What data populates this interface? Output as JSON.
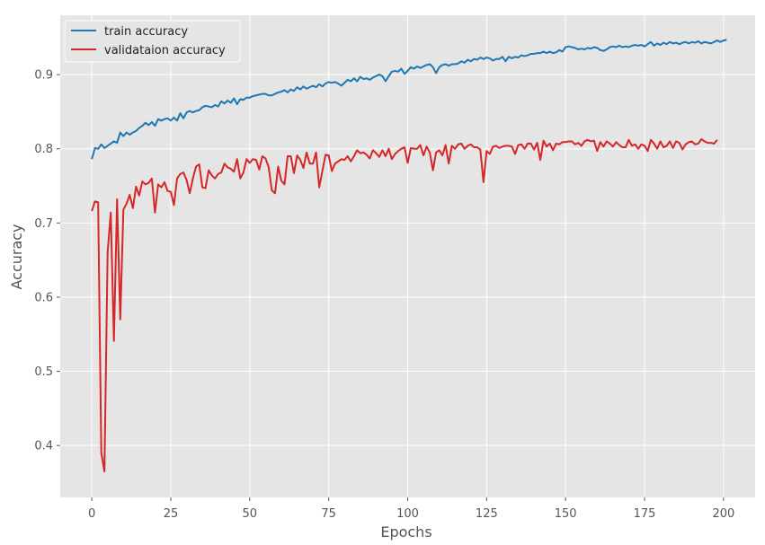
{
  "chart_data": {
    "type": "line",
    "title": "",
    "xlabel": "Epochs",
    "ylabel": "Accuracy",
    "xlim": [
      -10,
      210
    ],
    "ylim": [
      0.33,
      0.98
    ],
    "x_ticks": [
      0,
      25,
      50,
      75,
      100,
      125,
      150,
      175,
      200
    ],
    "x_tick_labels": [
      "0",
      "25",
      "50",
      "75",
      "100",
      "125",
      "150",
      "175",
      "200"
    ],
    "y_ticks": [
      0.4,
      0.5,
      0.6,
      0.7,
      0.8,
      0.9
    ],
    "y_tick_labels": [
      "0.4",
      "0.5",
      "0.6",
      "0.7",
      "0.8",
      "0.9"
    ],
    "grid": true,
    "legend_position": "top-left",
    "style": {
      "background": "#e5e5e5",
      "grid_color": "#ffffff",
      "tick_color": "#555555"
    },
    "x_start": 0,
    "x_step": 1,
    "series": [
      {
        "name": "train accuracy",
        "color": "#1f77b4",
        "values": [
          0.786,
          0.801,
          0.8,
          0.806,
          0.801,
          0.804,
          0.807,
          0.81,
          0.808,
          0.822,
          0.817,
          0.822,
          0.819,
          0.822,
          0.824,
          0.828,
          0.831,
          0.835,
          0.832,
          0.836,
          0.831,
          0.84,
          0.838,
          0.84,
          0.841,
          0.838,
          0.842,
          0.838,
          0.848,
          0.841,
          0.849,
          0.851,
          0.849,
          0.851,
          0.852,
          0.856,
          0.858,
          0.857,
          0.856,
          0.859,
          0.857,
          0.864,
          0.861,
          0.865,
          0.862,
          0.868,
          0.86,
          0.867,
          0.866,
          0.869,
          0.869,
          0.871,
          0.872,
          0.873,
          0.874,
          0.874,
          0.872,
          0.872,
          0.874,
          0.876,
          0.877,
          0.879,
          0.876,
          0.88,
          0.878,
          0.883,
          0.88,
          0.884,
          0.881,
          0.883,
          0.885,
          0.883,
          0.887,
          0.884,
          0.888,
          0.89,
          0.889,
          0.89,
          0.888,
          0.885,
          0.889,
          0.893,
          0.891,
          0.895,
          0.891,
          0.897,
          0.894,
          0.895,
          0.893,
          0.896,
          0.898,
          0.9,
          0.898,
          0.891,
          0.898,
          0.904,
          0.905,
          0.904,
          0.908,
          0.901,
          0.905,
          0.91,
          0.908,
          0.911,
          0.909,
          0.911,
          0.913,
          0.914,
          0.91,
          0.902,
          0.91,
          0.913,
          0.914,
          0.912,
          0.914,
          0.914,
          0.915,
          0.918,
          0.916,
          0.92,
          0.918,
          0.921,
          0.92,
          0.923,
          0.921,
          0.923,
          0.922,
          0.919,
          0.921,
          0.921,
          0.924,
          0.918,
          0.924,
          0.922,
          0.924,
          0.923,
          0.926,
          0.925,
          0.926,
          0.928,
          0.928,
          0.929,
          0.929,
          0.931,
          0.929,
          0.931,
          0.929,
          0.93,
          0.933,
          0.931,
          0.937,
          0.938,
          0.937,
          0.936,
          0.934,
          0.935,
          0.934,
          0.936,
          0.935,
          0.937,
          0.936,
          0.933,
          0.932,
          0.934,
          0.937,
          0.938,
          0.937,
          0.939,
          0.937,
          0.938,
          0.937,
          0.939,
          0.94,
          0.939,
          0.94,
          0.938,
          0.941,
          0.944,
          0.939,
          0.942,
          0.94,
          0.943,
          0.941,
          0.944,
          0.942,
          0.943,
          0.941,
          0.943,
          0.944,
          0.942,
          0.944,
          0.943,
          0.945,
          0.942,
          0.944,
          0.943,
          0.942,
          0.944,
          0.946,
          0.944,
          0.946,
          0.947
        ]
      },
      {
        "name": "validataion accuracy",
        "color": "#d62728",
        "values": [
          0.716,
          0.729,
          0.728,
          0.39,
          0.365,
          0.66,
          0.714,
          0.541,
          0.732,
          0.57,
          0.718,
          0.726,
          0.738,
          0.72,
          0.749,
          0.737,
          0.756,
          0.752,
          0.754,
          0.76,
          0.714,
          0.752,
          0.748,
          0.755,
          0.743,
          0.742,
          0.724,
          0.76,
          0.766,
          0.768,
          0.758,
          0.74,
          0.76,
          0.776,
          0.779,
          0.748,
          0.747,
          0.771,
          0.764,
          0.76,
          0.766,
          0.768,
          0.78,
          0.775,
          0.773,
          0.769,
          0.786,
          0.76,
          0.768,
          0.786,
          0.781,
          0.786,
          0.785,
          0.772,
          0.79,
          0.787,
          0.775,
          0.744,
          0.74,
          0.776,
          0.757,
          0.752,
          0.79,
          0.79,
          0.767,
          0.791,
          0.785,
          0.774,
          0.795,
          0.78,
          0.78,
          0.795,
          0.748,
          0.77,
          0.792,
          0.791,
          0.77,
          0.78,
          0.783,
          0.786,
          0.785,
          0.79,
          0.783,
          0.79,
          0.798,
          0.794,
          0.795,
          0.792,
          0.787,
          0.798,
          0.794,
          0.789,
          0.798,
          0.79,
          0.8,
          0.786,
          0.793,
          0.797,
          0.8,
          0.802,
          0.781,
          0.801,
          0.8,
          0.8,
          0.805,
          0.791,
          0.803,
          0.795,
          0.771,
          0.795,
          0.798,
          0.791,
          0.805,
          0.78,
          0.804,
          0.8,
          0.806,
          0.807,
          0.8,
          0.804,
          0.806,
          0.802,
          0.802,
          0.799,
          0.755,
          0.797,
          0.793,
          0.803,
          0.804,
          0.801,
          0.803,
          0.804,
          0.804,
          0.803,
          0.793,
          0.805,
          0.806,
          0.8,
          0.807,
          0.807,
          0.799,
          0.808,
          0.785,
          0.811,
          0.803,
          0.807,
          0.798,
          0.807,
          0.806,
          0.809,
          0.809,
          0.81,
          0.81,
          0.806,
          0.808,
          0.804,
          0.81,
          0.812,
          0.81,
          0.811,
          0.797,
          0.809,
          0.803,
          0.81,
          0.807,
          0.803,
          0.809,
          0.805,
          0.802,
          0.802,
          0.812,
          0.804,
          0.806,
          0.8,
          0.806,
          0.804,
          0.797,
          0.812,
          0.807,
          0.8,
          0.81,
          0.802,
          0.804,
          0.81,
          0.801,
          0.81,
          0.808,
          0.799,
          0.806,
          0.809,
          0.81,
          0.806,
          0.807,
          0.813,
          0.81,
          0.808,
          0.808,
          0.807,
          0.812
        ]
      }
    ]
  }
}
